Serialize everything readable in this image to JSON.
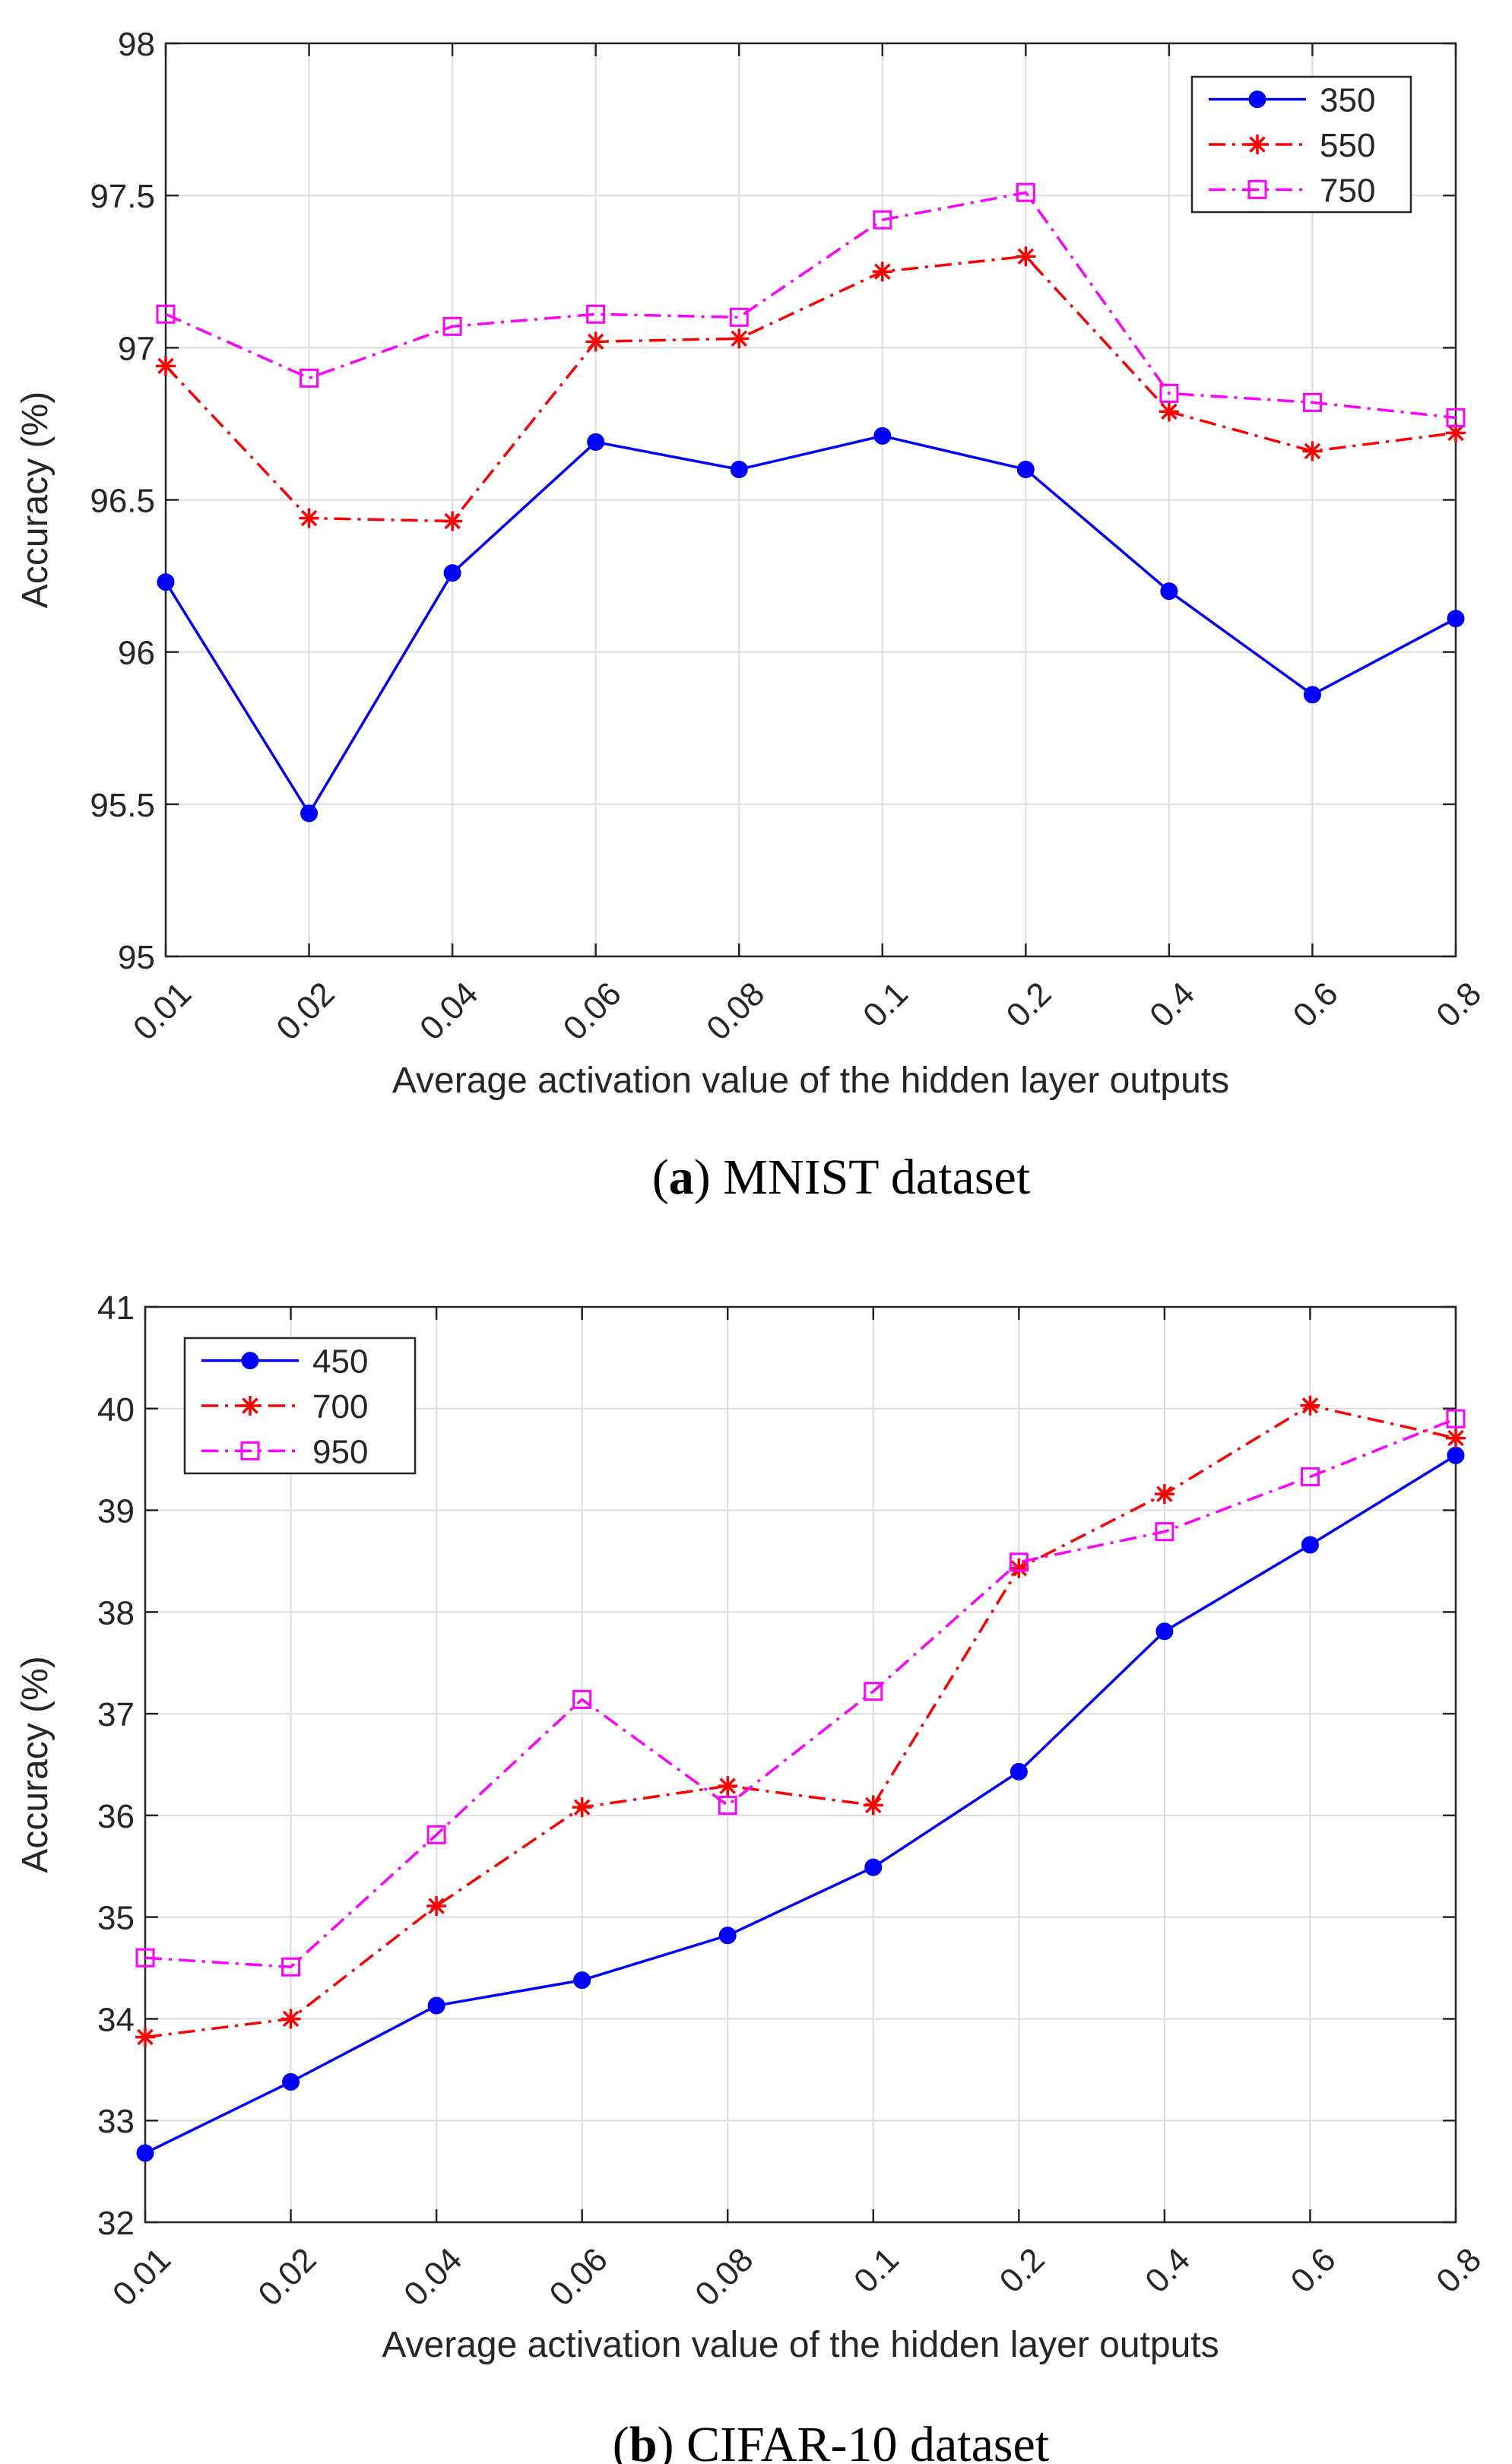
{
  "chart_data": [
    {
      "type": "line",
      "caption_letter": "a",
      "caption_text": ") MNIST dataset",
      "caption_open": "(",
      "xlabel": "Average activation value of the hidden layer outputs",
      "ylabel": "Accuracy (%)",
      "categories": [
        "0.01",
        "0.02",
        "0.04",
        "0.06",
        "0.08",
        "0.1",
        "0.2",
        "0.4",
        "0.6",
        "0.8"
      ],
      "ylim": [
        95,
        98
      ],
      "yticks": [
        95,
        95.5,
        96,
        96.5,
        97,
        97.5,
        98
      ],
      "ytick_labels": [
        "95",
        "95.5",
        "96",
        "96.5",
        "97",
        "97.5",
        "98"
      ],
      "grid": true,
      "legend_position": "top-right",
      "series": [
        {
          "name": "350",
          "color": "#0000ff",
          "dash": "solid",
          "marker": "circle",
          "values": [
            96.23,
            95.47,
            96.26,
            96.69,
            96.6,
            96.71,
            96.6,
            96.2,
            95.86,
            96.11
          ]
        },
        {
          "name": "550",
          "color": "#ff0000",
          "dash": "dashdot",
          "marker": "asterisk",
          "values": [
            96.94,
            96.44,
            96.43,
            97.02,
            97.03,
            97.25,
            97.3,
            96.79,
            96.66,
            96.72
          ]
        },
        {
          "name": "750",
          "color": "#ff00ff",
          "dash": "dashdot",
          "marker": "square",
          "values": [
            97.11,
            96.9,
            97.07,
            97.11,
            97.1,
            97.42,
            97.51,
            96.85,
            96.82,
            96.77
          ]
        }
      ]
    },
    {
      "type": "line",
      "caption_letter": "b",
      "caption_text": ") CIFAR-10 dataset",
      "caption_open": "(",
      "xlabel": "Average activation value of the hidden layer outputs",
      "ylabel": "Accuracy (%)",
      "categories": [
        "0.01",
        "0.02",
        "0.04",
        "0.06",
        "0.08",
        "0.1",
        "0.2",
        "0.4",
        "0.6",
        "0.8"
      ],
      "ylim": [
        32,
        41
      ],
      "yticks": [
        32,
        33,
        34,
        35,
        36,
        37,
        38,
        39,
        40,
        41
      ],
      "ytick_labels": [
        "32",
        "33",
        "34",
        "35",
        "36",
        "37",
        "38",
        "39",
        "40",
        "41"
      ],
      "grid": true,
      "legend_position": "top-left",
      "series": [
        {
          "name": "450",
          "color": "#0000ff",
          "dash": "solid",
          "marker": "circle",
          "values": [
            32.68,
            33.38,
            34.13,
            34.38,
            34.82,
            35.49,
            36.43,
            37.81,
            38.66,
            39.54
          ]
        },
        {
          "name": "700",
          "color": "#ff0000",
          "dash": "dashdot",
          "marker": "asterisk",
          "values": [
            33.82,
            34.0,
            35.11,
            36.08,
            36.29,
            36.1,
            38.43,
            39.16,
            40.03,
            39.71
          ]
        },
        {
          "name": "950",
          "color": "#ff00ff",
          "dash": "dashdot",
          "marker": "square",
          "values": [
            34.6,
            34.51,
            35.81,
            37.14,
            36.1,
            37.22,
            38.49,
            38.79,
            39.33,
            39.9
          ]
        }
      ]
    }
  ]
}
